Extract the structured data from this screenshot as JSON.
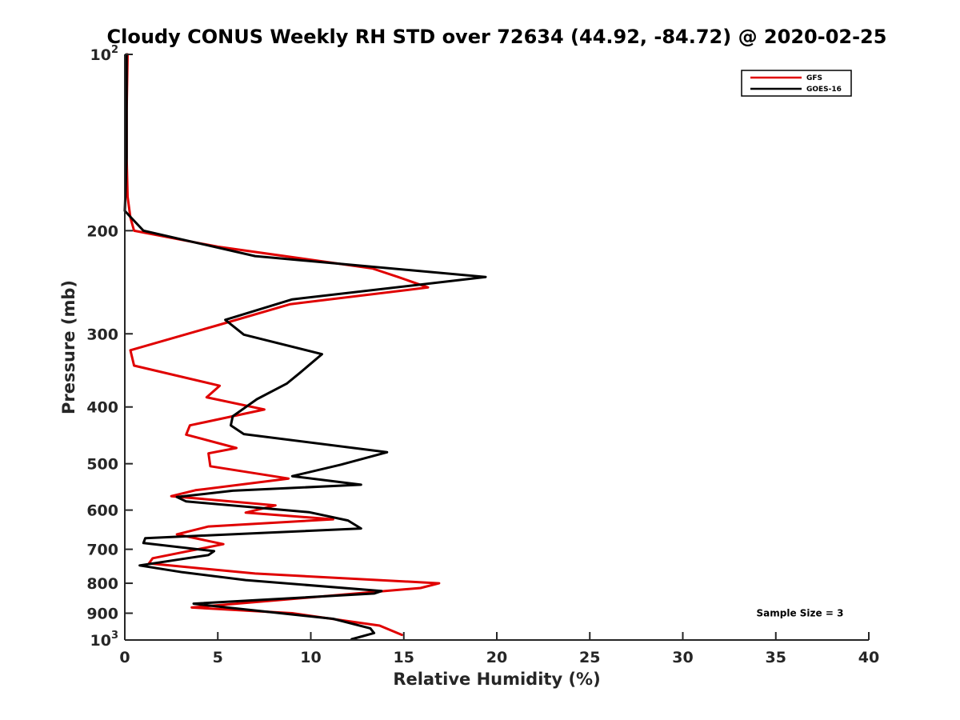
{
  "chart_data": {
    "type": "line",
    "title": "Cloudy CONUS Weekly RH STD over 72634 (44.92, -84.72) @ 2020-02-25",
    "xlabel": "Relative Humidity (%)",
    "ylabel": "Pressure (mb)",
    "xlim": [
      0,
      40
    ],
    "ylim": [
      100,
      1000
    ],
    "y_scale": "log",
    "y_reversed": true,
    "grid": false,
    "legend_position": "top-right",
    "x_ticks": [
      0,
      5,
      10,
      15,
      20,
      25,
      30,
      35,
      40
    ],
    "x_tick_labels": [
      "0",
      "5",
      "10",
      "15",
      "20",
      "25",
      "30",
      "35",
      "40"
    ],
    "y_ticks": [
      100,
      200,
      300,
      400,
      500,
      600,
      700,
      800,
      900,
      1000
    ],
    "y_tick_labels": [
      {
        "base": "10",
        "sup": "2"
      },
      {
        "base": "200",
        "sup": ""
      },
      {
        "base": "300",
        "sup": ""
      },
      {
        "base": "400",
        "sup": ""
      },
      {
        "base": "500",
        "sup": ""
      },
      {
        "base": "600",
        "sup": ""
      },
      {
        "base": "700",
        "sup": ""
      },
      {
        "base": "800",
        "sup": ""
      },
      {
        "base": "900",
        "sup": ""
      },
      {
        "base": "10",
        "sup": "3"
      }
    ],
    "series": [
      {
        "name": "GFS",
        "color": "#e00000",
        "points": [
          [
            0.15,
            100
          ],
          [
            0.1,
            125
          ],
          [
            0.1,
            150
          ],
          [
            0.15,
            175
          ],
          [
            0.3,
            190
          ],
          [
            0.5,
            200
          ],
          [
            5.0,
            213
          ],
          [
            13.3,
            232
          ],
          [
            14.7,
            240
          ],
          [
            16.3,
            250
          ],
          [
            8.9,
            267
          ],
          [
            5.0,
            290
          ],
          [
            0.3,
            320
          ],
          [
            0.5,
            340
          ],
          [
            5.1,
            368
          ],
          [
            4.4,
            385
          ],
          [
            7.5,
            404
          ],
          [
            3.5,
            430
          ],
          [
            3.3,
            446
          ],
          [
            6.0,
            470
          ],
          [
            4.5,
            480
          ],
          [
            4.6,
            505
          ],
          [
            8.8,
            530
          ],
          [
            3.8,
            555
          ],
          [
            2.5,
            568
          ],
          [
            8.1,
            589
          ],
          [
            6.5,
            606
          ],
          [
            11.2,
            622
          ],
          [
            4.5,
            640
          ],
          [
            2.8,
            660
          ],
          [
            5.3,
            686
          ],
          [
            1.5,
            725
          ],
          [
            1.3,
            740
          ],
          [
            7.0,
            770
          ],
          [
            16.9,
            800
          ],
          [
            15.9,
            815
          ],
          [
            3.6,
            880
          ],
          [
            9.0,
            900
          ],
          [
            13.7,
            945
          ],
          [
            14.9,
            980
          ]
        ]
      },
      {
        "name": "GOES-16",
        "color": "#000000",
        "points": [
          [
            0.1,
            100
          ],
          [
            0.1,
            125
          ],
          [
            0.1,
            150
          ],
          [
            0.0,
            185
          ],
          [
            1.0,
            200
          ],
          [
            7.0,
            221
          ],
          [
            19.4,
            240
          ],
          [
            9.0,
            262
          ],
          [
            5.4,
            284
          ],
          [
            6.4,
            301
          ],
          [
            10.6,
            325
          ],
          [
            9.4,
            350
          ],
          [
            8.7,
            365
          ],
          [
            7.1,
            388
          ],
          [
            5.8,
            415
          ],
          [
            5.7,
            430
          ],
          [
            6.4,
            445
          ],
          [
            14.1,
            478
          ],
          [
            11.6,
            502
          ],
          [
            9.0,
            525
          ],
          [
            12.7,
            543
          ],
          [
            5.8,
            556
          ],
          [
            2.8,
            570
          ],
          [
            3.3,
            580
          ],
          [
            9.9,
            605
          ],
          [
            12.0,
            625
          ],
          [
            12.7,
            645
          ],
          [
            1.1,
            670
          ],
          [
            1.0,
            683
          ],
          [
            4.8,
            705
          ],
          [
            4.5,
            716
          ],
          [
            0.8,
            746
          ],
          [
            3.1,
            766
          ],
          [
            6.5,
            790
          ],
          [
            13.8,
            825
          ],
          [
            13.4,
            833
          ],
          [
            3.7,
            867
          ],
          [
            5.2,
            878
          ],
          [
            11.2,
            920
          ],
          [
            13.2,
            955
          ],
          [
            13.4,
            973
          ],
          [
            12.2,
            997
          ]
        ]
      }
    ],
    "annotations": [
      {
        "text": "Sample Size = 3",
        "x": 36.3,
        "y": 900
      }
    ]
  }
}
